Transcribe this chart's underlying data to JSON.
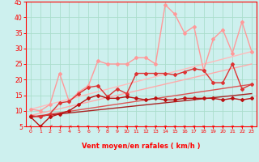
{
  "xlabel": "Vent moyen/en rafales ( km/h )",
  "xlim": [
    -0.5,
    23.5
  ],
  "ylim": [
    5,
    45
  ],
  "yticks": [
    5,
    10,
    15,
    20,
    25,
    30,
    35,
    40,
    45
  ],
  "xticks": [
    0,
    1,
    2,
    3,
    4,
    5,
    6,
    7,
    8,
    9,
    10,
    11,
    12,
    13,
    14,
    15,
    16,
    17,
    18,
    19,
    20,
    21,
    22,
    23
  ],
  "bg_color": "#cdf0ee",
  "grid_color": "#aaddcc",
  "straight_lines": [
    {
      "x0": 0,
      "y0": 10.5,
      "x1": 23,
      "y1": 29.0,
      "color": "#ffbbbb",
      "lw": 1.0
    },
    {
      "x0": 0,
      "y0": 8.5,
      "x1": 23,
      "y1": 25.0,
      "color": "#ffaaaa",
      "lw": 1.0
    },
    {
      "x0": 0,
      "y0": 8.0,
      "x1": 23,
      "y1": 18.5,
      "color": "#dd5555",
      "lw": 1.0
    },
    {
      "x0": 0,
      "y0": 8.0,
      "x1": 23,
      "y1": 15.5,
      "color": "#aa2222",
      "lw": 1.0
    }
  ],
  "jagged_lines": [
    {
      "y": [
        10.5,
        10.0,
        12.0,
        22.0,
        13.0,
        16.0,
        18.0,
        26.0,
        25.0,
        25.0,
        25.0,
        27.0,
        27.0,
        25.0,
        44.0,
        41.0,
        35.0,
        37.0,
        23.0,
        33.0,
        36.0,
        28.5,
        38.5,
        29.0
      ],
      "color": "#ff9999",
      "lw": 1.0,
      "marker": "D",
      "ms": 2.0
    },
    {
      "y": [
        8.5,
        8.0,
        9.0,
        12.5,
        13.0,
        15.5,
        17.5,
        18.0,
        14.5,
        17.0,
        15.5,
        22.0,
        22.0,
        22.0,
        22.0,
        21.5,
        22.5,
        23.5,
        23.0,
        19.0,
        19.0,
        25.0,
        17.0,
        18.5
      ],
      "color": "#dd3333",
      "lw": 1.0,
      "marker": "D",
      "ms": 2.0
    },
    {
      "y": [
        8.0,
        5.0,
        8.0,
        9.0,
        10.0,
        12.0,
        14.0,
        15.0,
        14.0,
        14.0,
        14.5,
        14.0,
        13.5,
        14.0,
        13.5,
        13.5,
        14.0,
        14.0,
        14.0,
        14.0,
        13.5,
        14.0,
        13.5,
        14.0
      ],
      "color": "#bb1111",
      "lw": 1.0,
      "marker": "D",
      "ms": 2.0
    }
  ],
  "arrow_angles_deg": [
    220,
    210,
    200,
    185,
    170,
    155,
    135,
    90,
    85,
    75,
    65,
    55,
    50,
    45,
    45,
    45,
    45,
    45,
    45,
    45,
    45,
    45,
    45,
    45
  ]
}
